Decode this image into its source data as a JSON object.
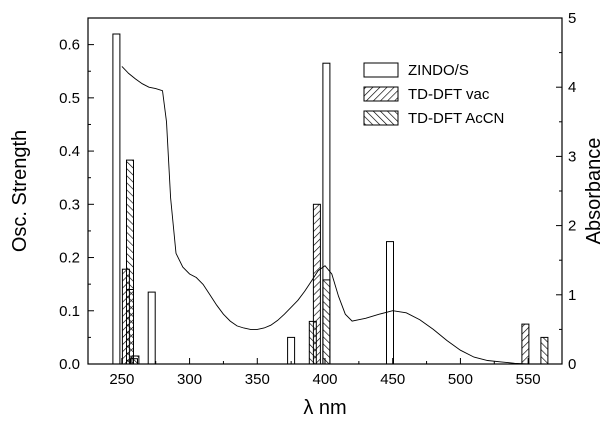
{
  "chart_data": {
    "type": "bar",
    "xlabel": "λ nm",
    "ylabel": "Osc. Strength",
    "y2label": "Absorbance",
    "xlim": [
      225,
      575
    ],
    "ylim": [
      0,
      0.65
    ],
    "y2lim": [
      0,
      5
    ],
    "x_ticks": [
      "250",
      "300",
      "350",
      "400",
      "450",
      "500",
      "550"
    ],
    "y_ticks": [
      "0.0",
      "0.1",
      "0.2",
      "0.3",
      "0.4",
      "0.5",
      "0.6"
    ],
    "y2_ticks": [
      "0",
      "1",
      "2",
      "3",
      "4",
      "5"
    ],
    "legend_position": "top-right",
    "series": [
      {
        "name": "ZINDO/S",
        "pattern": "open",
        "x": [
          246,
          259,
          272,
          375,
          401,
          448
        ],
        "values": [
          0.62,
          0.01,
          0.135,
          0.05,
          0.565,
          0.23
        ]
      },
      {
        "name": "TD-DFT vac",
        "pattern": "hatch-right",
        "x": [
          253,
          256,
          394,
          548
        ],
        "values": [
          0.178,
          0.14,
          0.3,
          0.075
        ]
      },
      {
        "name": "TD-DFT AcCN",
        "pattern": "hatch-left",
        "x": [
          256,
          260,
          391,
          401,
          562
        ],
        "values": [
          0.383,
          0.015,
          0.08,
          0.158,
          0.05
        ]
      }
    ],
    "absorbance_curve": {
      "axis": "right",
      "x": [
        250,
        255,
        260,
        265,
        270,
        275,
        280,
        283,
        286,
        290,
        295,
        300,
        305,
        310,
        315,
        320,
        325,
        330,
        335,
        340,
        345,
        350,
        355,
        360,
        365,
        370,
        375,
        380,
        385,
        390,
        395,
        400,
        405,
        410,
        415,
        420,
        425,
        430,
        440,
        450,
        460,
        470,
        480,
        490,
        500,
        510,
        520,
        530,
        540,
        550
      ],
      "values": [
        4.3,
        4.2,
        4.12,
        4.05,
        4.0,
        3.98,
        3.95,
        3.5,
        2.4,
        1.6,
        1.4,
        1.3,
        1.25,
        1.15,
        1.0,
        0.85,
        0.72,
        0.62,
        0.55,
        0.52,
        0.5,
        0.5,
        0.52,
        0.56,
        0.63,
        0.72,
        0.82,
        0.92,
        1.05,
        1.2,
        1.35,
        1.42,
        1.3,
        0.98,
        0.72,
        0.62,
        0.64,
        0.66,
        0.72,
        0.77,
        0.74,
        0.64,
        0.5,
        0.34,
        0.2,
        0.1,
        0.05,
        0.03,
        0.01,
        0.0
      ]
    }
  }
}
